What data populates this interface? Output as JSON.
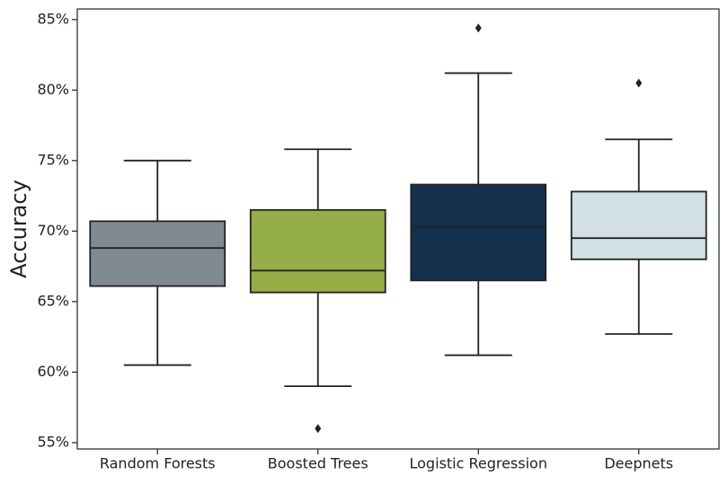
{
  "chart_data": {
    "type": "box",
    "y_label": "Accuracy",
    "categories": [
      "Random Forests",
      "Boosted Trees",
      "Logistic Regression",
      "Deepnets"
    ],
    "colors": [
      "#7f8b91",
      "#95ae47",
      "#13304c",
      "#d2dfe5"
    ],
    "boxes": [
      {
        "whislo": 60.5,
        "q1": 66.1,
        "med": 68.8,
        "q3": 70.7,
        "whishi": 75.0,
        "fliers": []
      },
      {
        "whislo": 59.0,
        "q1": 65.65,
        "med": 67.2,
        "q3": 71.5,
        "whishi": 75.8,
        "fliers": [
          56.0
        ]
      },
      {
        "whislo": 61.2,
        "q1": 66.5,
        "med": 70.3,
        "q3": 73.3,
        "whishi": 81.2,
        "fliers": [
          84.4
        ]
      },
      {
        "whislo": 62.7,
        "q1": 68.0,
        "med": 69.5,
        "q3": 72.8,
        "whishi": 76.5,
        "fliers": [
          80.5
        ]
      }
    ],
    "ylim": [
      54.55,
      85.75
    ],
    "yticks": [
      {
        "value": 55,
        "label": "55%"
      },
      {
        "value": 60,
        "label": "60%"
      },
      {
        "value": 65,
        "label": "65%"
      },
      {
        "value": 70,
        "label": "70%"
      },
      {
        "value": 75,
        "label": "75%"
      },
      {
        "value": 80,
        "label": "80%"
      },
      {
        "value": 85,
        "label": "85%"
      }
    ]
  }
}
